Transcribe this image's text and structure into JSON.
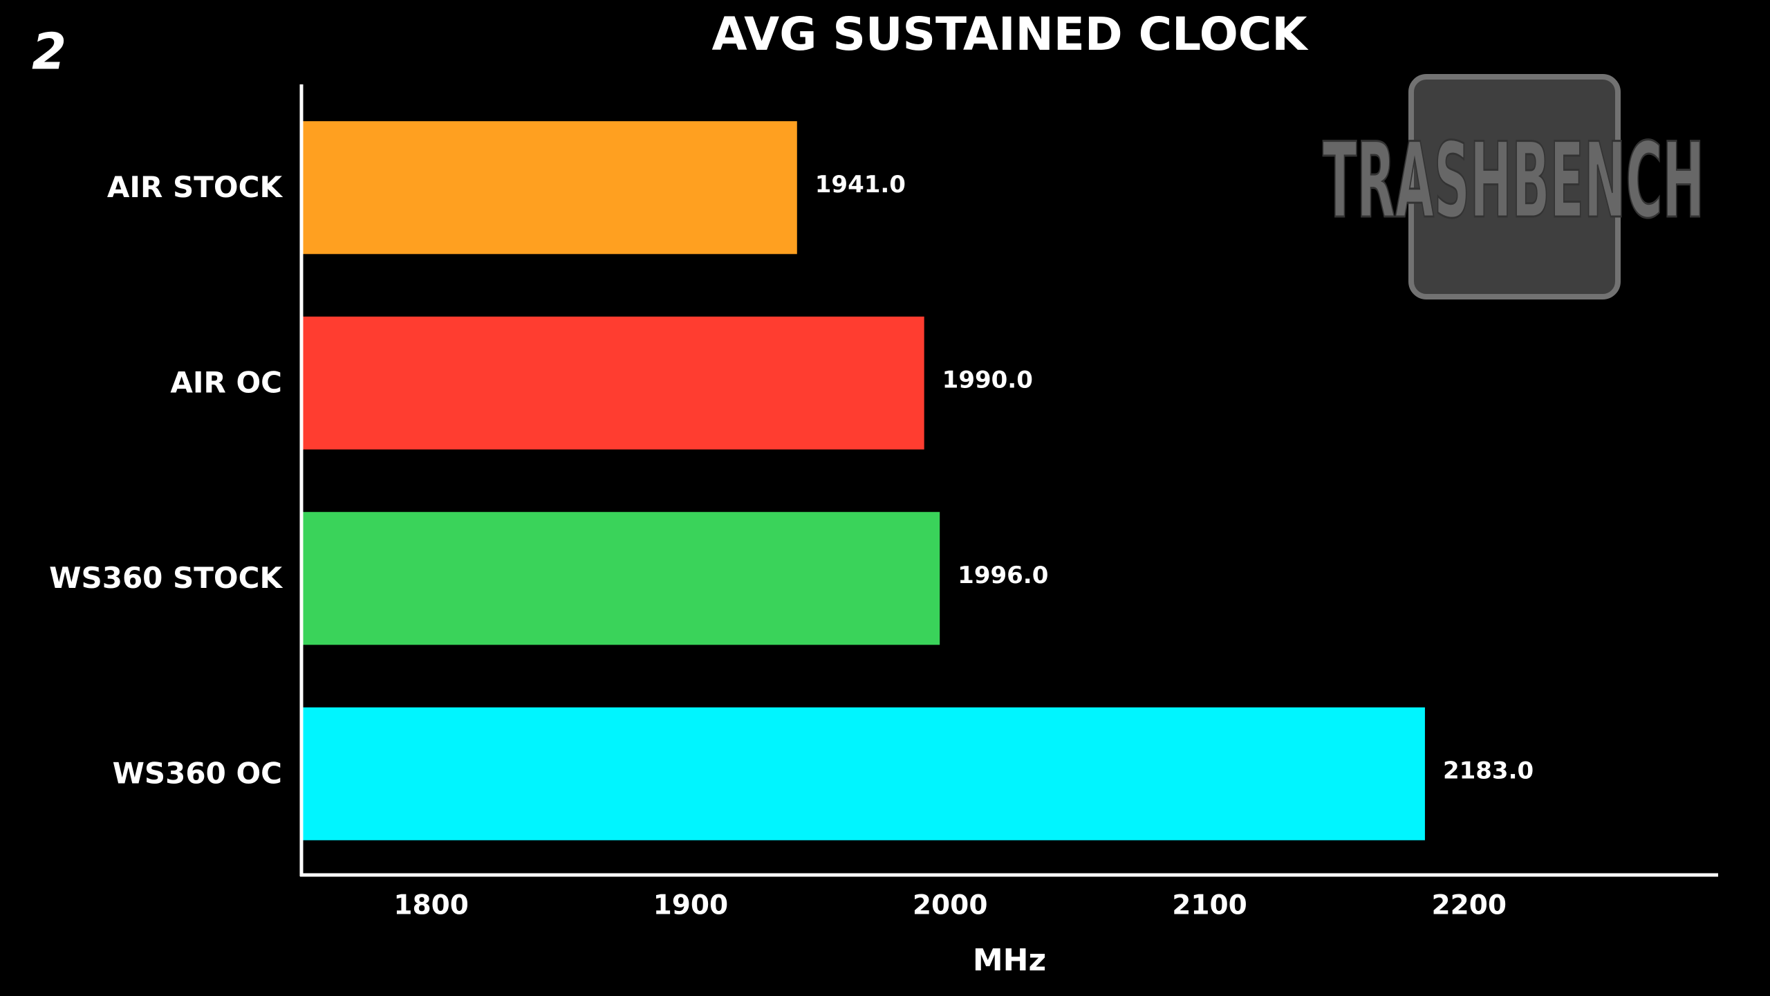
{
  "chart_data": {
    "type": "hbar",
    "title": "AVG SUSTAINED CLOCK",
    "corner_label": "2",
    "watermark": "TRASHBENCH",
    "x_label": "MHz",
    "categories": [
      "AIR STOCK",
      "AIR OC",
      "WS360 STOCK",
      "WS360 OC"
    ],
    "values": [
      1941,
      1990,
      1996,
      2183
    ],
    "value_labels": [
      "1941.0",
      "1990.0",
      "1996.0",
      "2183.0"
    ],
    "colors": [
      "#ffa020",
      "#ff3d30",
      "#3ad35a",
      "#00f5ff"
    ],
    "xlim": [
      1750,
      2296
    ],
    "xticks": [
      1800,
      1900,
      2000,
      2100,
      2200
    ],
    "grid": false
  }
}
